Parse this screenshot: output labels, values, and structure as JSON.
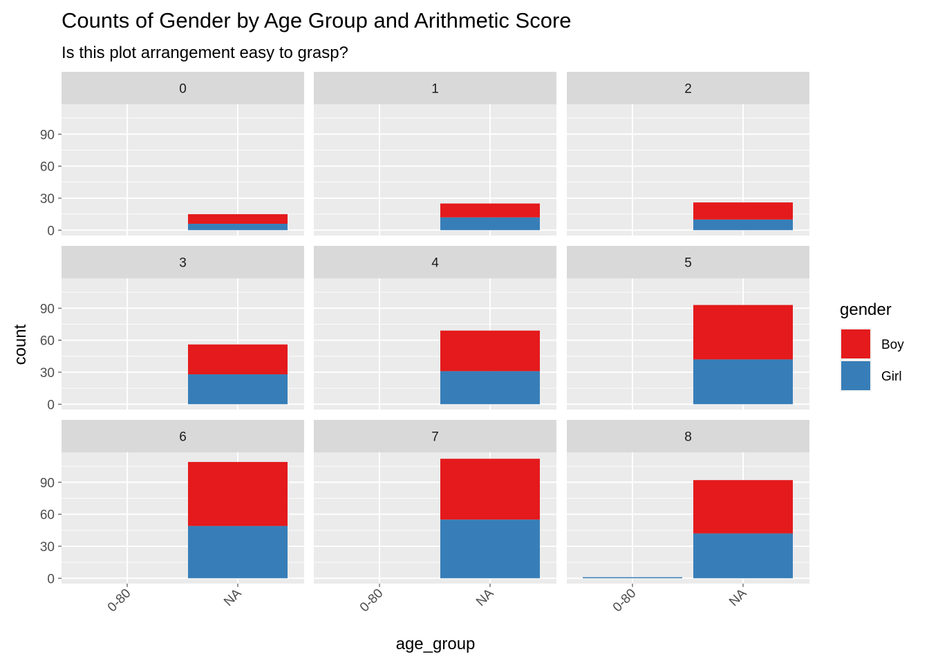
{
  "title": "Counts of Gender by Age Group and Arithmetic Score",
  "subtitle": "Is this plot arrangement easy to grasp?",
  "colors": {
    "Boy": "#E41A1C",
    "Girl": "#377EB8",
    "panel_bg": "#EBEBEB",
    "strip_bg": "#D9D9D9",
    "grid": "#FFFFFF"
  },
  "chart_data": {
    "type": "bar",
    "stacked": true,
    "facet_variable": "arithmetic score",
    "x_categories": [
      "0-80",
      "NA"
    ],
    "xlabel": "age_group",
    "ylabel": "count",
    "yticks": [
      0,
      30,
      60,
      90
    ],
    "ylim": [
      -5,
      118
    ],
    "grid": true,
    "legend": {
      "title": "gender",
      "position": "right",
      "entries": [
        "Boy",
        "Girl"
      ]
    },
    "panels": [
      {
        "label": "0",
        "bars": [
          {
            "x": "NA",
            "Girl": 6,
            "Boy": 9
          }
        ]
      },
      {
        "label": "1",
        "bars": [
          {
            "x": "NA",
            "Girl": 12,
            "Boy": 13
          }
        ]
      },
      {
        "label": "2",
        "bars": [
          {
            "x": "NA",
            "Girl": 10,
            "Boy": 16
          }
        ]
      },
      {
        "label": "3",
        "bars": [
          {
            "x": "NA",
            "Girl": 28,
            "Boy": 28
          }
        ]
      },
      {
        "label": "4",
        "bars": [
          {
            "x": "NA",
            "Girl": 31,
            "Boy": 38
          }
        ]
      },
      {
        "label": "5",
        "bars": [
          {
            "x": "NA",
            "Girl": 42,
            "Boy": 51
          }
        ]
      },
      {
        "label": "6",
        "bars": [
          {
            "x": "NA",
            "Girl": 49,
            "Boy": 60
          }
        ]
      },
      {
        "label": "7",
        "bars": [
          {
            "x": "NA",
            "Girl": 55,
            "Boy": 57
          }
        ]
      },
      {
        "label": "8",
        "bars": [
          {
            "x": "0-80",
            "Girl": 1,
            "Boy": 0
          },
          {
            "x": "NA",
            "Girl": 42,
            "Boy": 50
          }
        ]
      }
    ]
  }
}
